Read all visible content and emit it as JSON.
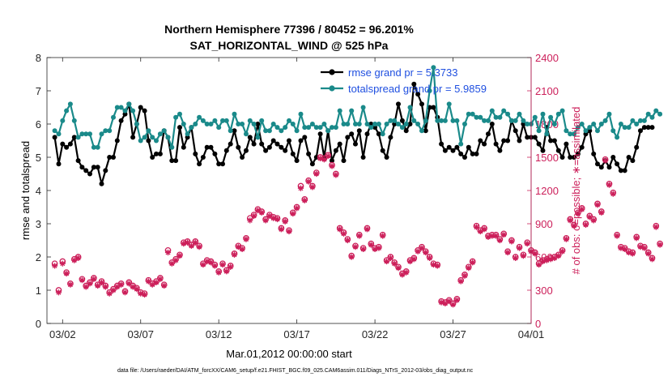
{
  "chart_data": {
    "type": "line",
    "title": "Northern Hemisphere 77396 / 80452 = 96.201%",
    "subtitle": "SAT_HORIZONTAL_WIND @ 525 hPa",
    "xlabel": "Mar.01,2012 00:00:00 start",
    "ylabel_left": "rmse and totalspread",
    "ylabel_right": "# of obs: o=possible; ∗=assimilated",
    "footnote": "data file: /Users/raeder/DAI/ATM_forcXX/CAM6_setup/f.e21.FHIST_BGC.f09_025.CAM6assim.011/Diags_NTrS_2012-03/obs_diag_output.nc",
    "xlim": [
      0.5,
      31.5
    ],
    "xticks": [
      1.5,
      6.5,
      11.5,
      16.5,
      21.5,
      26.5,
      31.5
    ],
    "xtick_labels": [
      "03/02",
      "03/07",
      "03/12",
      "03/17",
      "03/22",
      "03/27",
      "04/01"
    ],
    "ylim_left": [
      0,
      8
    ],
    "yticks_left": [
      0,
      1,
      2,
      3,
      4,
      5,
      6,
      7,
      8
    ],
    "ylim_right": [
      0,
      2400
    ],
    "yticks_right": [
      0,
      300,
      600,
      900,
      1200,
      1500,
      1800,
      2100,
      2400
    ],
    "colors": {
      "rmse": "#000000",
      "totalspread": "#1a8a8a",
      "obs": "#cc1f5a",
      "legend_text": "#1f4fe0",
      "axis_right": "#cc1f5a"
    },
    "series": [
      {
        "name": "rmse grand pr = 5.3733",
        "axis": "left",
        "start": 1.0,
        "step": 0.25,
        "values": [
          5.6,
          4.8,
          5.4,
          5.3,
          5.4,
          5.6,
          4.9,
          4.7,
          4.6,
          4.5,
          4.7,
          4.7,
          4.2,
          4.6,
          5.0,
          5.0,
          5.5,
          6.1,
          6.3,
          6.6,
          5.6,
          6.0,
          6.5,
          6.4,
          5.5,
          5.0,
          5.1,
          5.1,
          5.8,
          5.6,
          4.9,
          4.9,
          5.9,
          5.3,
          5.6,
          5.9,
          5.1,
          4.8,
          5.0,
          5.3,
          5.3,
          5.1,
          4.8,
          4.8,
          5.2,
          5.4,
          5.8,
          5.3,
          5.0,
          5.2,
          5.6,
          5.4,
          6.0,
          5.4,
          5.2,
          5.3,
          5.5,
          5.4,
          5.3,
          5.2,
          5.5,
          5.1,
          4.9,
          5.5,
          5.6,
          5.1,
          4.8,
          5.0,
          5.7,
          5.0,
          5.8,
          4.9,
          5.2,
          5.4,
          4.9,
          5.6,
          5.7,
          5.4,
          5.8,
          5.0,
          5.7,
          6.0,
          5.9,
          5.7,
          5.2,
          5.0,
          5.6,
          6.0,
          6.6,
          6.1,
          5.8,
          6.0,
          7.2,
          6.9,
          6.6,
          5.8,
          6.5,
          6.5,
          6.2,
          5.4,
          5.2,
          5.3,
          5.2,
          5.3,
          5.1,
          5.0,
          5.3,
          5.1,
          5.1,
          5.5,
          5.4,
          5.7,
          6.0,
          5.4,
          5.2,
          5.5,
          5.5,
          6.1,
          5.8,
          5.5,
          6.0,
          5.6,
          5.6,
          5.6,
          5.4,
          5.2,
          5.9,
          5.5,
          5.5,
          5.2,
          5.0,
          5.4,
          5.0,
          5.0,
          5.1,
          5.3,
          5.7,
          5.8,
          5.1,
          4.8,
          4.7,
          4.9,
          4.7,
          5.0,
          4.8,
          4.6,
          4.6,
          5.0,
          4.9,
          5.3,
          5.8,
          5.9,
          5.9,
          5.9
        ],
        "marker": "filled-circle"
      },
      {
        "name": "totalspread grand pr = 5.9859",
        "axis": "left",
        "start": 1.0,
        "step": 0.25,
        "values": [
          5.8,
          5.7,
          6.1,
          6.4,
          6.6,
          6.1,
          5.6,
          5.7,
          5.7,
          5.7,
          5.3,
          5.3,
          5.7,
          5.8,
          5.8,
          6.2,
          6.5,
          6.5,
          6.4,
          6.6,
          6.4,
          6.0,
          5.5,
          5.6,
          5.8,
          5.6,
          5.5,
          5.7,
          5.8,
          5.6,
          5.3,
          6.2,
          6.3,
          6.0,
          5.7,
          5.9,
          6.0,
          6.2,
          6.1,
          6.0,
          6.0,
          6.1,
          5.9,
          6.1,
          6.1,
          5.8,
          6.3,
          6.0,
          6.0,
          5.7,
          6.1,
          6.0,
          5.6,
          6.1,
          5.8,
          5.8,
          6.0,
          5.9,
          5.8,
          5.9,
          6.1,
          6.0,
          5.8,
          6.3,
          5.9,
          5.9,
          6.0,
          5.9,
          5.9,
          6.0,
          5.8,
          5.9,
          5.9,
          6.4,
          6.0,
          6.0,
          6.4,
          6.0,
          6.0,
          6.5,
          6.0,
          5.9,
          6.0,
          6.0,
          5.7,
          6.0,
          6.1,
          6.1,
          6.0,
          5.9,
          6.0,
          6.5,
          6.1,
          6.0,
          5.8,
          6.1,
          7.0,
          7.7,
          6.1,
          6.1,
          6.1,
          6.6,
          6.1,
          6.1,
          5.4,
          6.0,
          6.3,
          6.3,
          6.2,
          6.2,
          6.1,
          6.1,
          6.4,
          6.2,
          6.2,
          6.4,
          6.3,
          6.1,
          6.1,
          6.3,
          6.1,
          6.0,
          6.0,
          6.2,
          5.8,
          6.3,
          5.7,
          6.2,
          6.0,
          6.3,
          6.4,
          5.8,
          5.7,
          5.7,
          5.9,
          6.0,
          5.8,
          5.9,
          6.0,
          5.8,
          6.0,
          6.1,
          6.3,
          5.8,
          5.6,
          6.0,
          5.9,
          5.9,
          6.1,
          6.0,
          6.1,
          6.1,
          6.3,
          6.2,
          6.4,
          6.3
        ],
        "marker": "filled-circle"
      },
      {
        "name": "obs possible",
        "axis": "right",
        "start": 1.0,
        "step": 0.25,
        "values": [
          540,
          300,
          560,
          460,
          360,
          580,
          600,
          400,
          340,
          370,
          410,
          350,
          380,
          340,
          280,
          310,
          340,
          360,
          290,
          370,
          340,
          320,
          280,
          270,
          390,
          360,
          380,
          410,
          350,
          660,
          550,
          580,
          620,
          730,
          740,
          710,
          740,
          700,
          540,
          570,
          560,
          530,
          470,
          540,
          480,
          520,
          630,
          700,
          680,
          770,
          950,
          980,
          1030,
          1010,
          940,
          980,
          960,
          950,
          860,
          930,
          840,
          1000,
          1050,
          1240,
          1120,
          1290,
          1240,
          1360,
          1500,
          1490,
          1520,
          1430,
          1350,
          860,
          820,
          760,
          610,
          700,
          800,
          680,
          860,
          720,
          680,
          690,
          800,
          570,
          600,
          550,
          510,
          450,
          470,
          570,
          590,
          660,
          690,
          650,
          600,
          540,
          530,
          200,
          190,
          210,
          180,
          220,
          390,
          440,
          510,
          560,
          880,
          840,
          860,
          790,
          800,
          800,
          760,
          810,
          650,
          750,
          600,
          690,
          620,
          730,
          660,
          640,
          540,
          570,
          580,
          590,
          600,
          620,
          660,
          770,
          940,
          890,
          1000,
          1040,
          900,
          970,
          940,
          1080,
          1010,
          1480,
          1260,
          1180,
          800,
          690,
          680,
          650,
          640,
          780,
          700,
          690,
          640,
          590,
          880,
          720
        ],
        "marker": "open-circle"
      },
      {
        "name": "obs assimilated",
        "axis": "right",
        "start": 1.0,
        "step": 0.25,
        "values": [
          520,
          280,
          540,
          450,
          350,
          570,
          590,
          390,
          330,
          360,
          400,
          340,
          370,
          330,
          270,
          300,
          330,
          350,
          280,
          360,
          330,
          310,
          270,
          260,
          380,
          350,
          370,
          400,
          340,
          640,
          540,
          570,
          610,
          720,
          730,
          700,
          730,
          690,
          530,
          560,
          550,
          520,
          460,
          530,
          470,
          510,
          620,
          690,
          670,
          760,
          930,
          970,
          1020,
          1000,
          930,
          970,
          950,
          940,
          850,
          920,
          830,
          990,
          1040,
          1220,
          1110,
          1280,
          1230,
          1350,
          1490,
          1480,
          1510,
          1420,
          1340,
          850,
          810,
          750,
          600,
          690,
          790,
          670,
          850,
          710,
          670,
          680,
          790,
          560,
          590,
          540,
          500,
          440,
          460,
          560,
          580,
          650,
          680,
          640,
          590,
          530,
          520,
          190,
          180,
          200,
          170,
          210,
          380,
          430,
          500,
          550,
          870,
          830,
          850,
          780,
          790,
          790,
          750,
          800,
          640,
          740,
          590,
          680,
          610,
          720,
          650,
          630,
          530,
          560,
          570,
          580,
          590,
          610,
          650,
          760,
          930,
          880,
          990,
          1030,
          890,
          960,
          930,
          1070,
          1000,
          1470,
          1250,
          1170,
          790,
          680,
          670,
          640,
          630,
          770,
          690,
          680,
          630,
          580,
          870,
          710
        ],
        "marker": "asterisk"
      }
    ]
  }
}
